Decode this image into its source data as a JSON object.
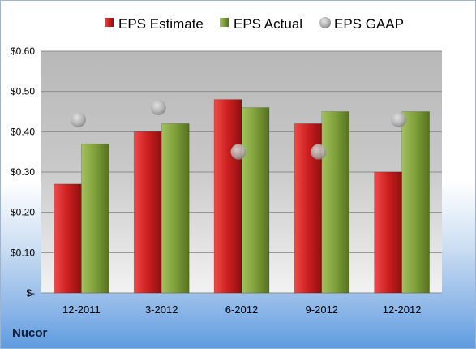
{
  "company": "Nucor",
  "chart_data": {
    "type": "bar",
    "categories": [
      "12-2011",
      "3-2012",
      "6-2012",
      "9-2012",
      "12-2012"
    ],
    "series": [
      {
        "name": "EPS Estimate",
        "kind": "bar",
        "color": "#cc1f1f",
        "values": [
          0.27,
          0.4,
          0.48,
          0.42,
          0.3
        ]
      },
      {
        "name": "EPS Actual",
        "kind": "bar",
        "color": "#7e9f3a",
        "values": [
          0.37,
          0.42,
          0.46,
          0.45,
          0.45
        ]
      },
      {
        "name": "EPS GAAP",
        "kind": "marker",
        "color": "#a9a9a9",
        "values": [
          0.43,
          0.46,
          0.35,
          0.35,
          0.43
        ]
      }
    ],
    "ylim": [
      0,
      0.6
    ],
    "yticks": [
      0,
      0.1,
      0.2,
      0.3,
      0.4,
      0.5,
      0.6
    ],
    "ytick_labels": [
      "$-",
      "$0.10",
      "$0.20",
      "$0.30",
      "$0.40",
      "$0.50",
      "$0.60"
    ],
    "legend_position": "top",
    "grid": true
  }
}
